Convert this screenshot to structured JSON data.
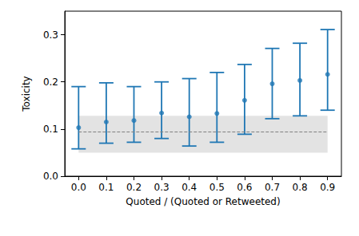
{
  "chart_data": {
    "type": "scatter",
    "x_label": "Quoted / (Quoted or Retweeted)",
    "y_label": "Toxicity",
    "categories": [
      "0.0",
      "0.1",
      "0.2",
      "0.3",
      "0.4",
      "0.5",
      "0.6",
      "0.7",
      "0.8",
      "0.9"
    ],
    "values": [
      0.103,
      0.115,
      0.118,
      0.134,
      0.126,
      0.133,
      0.161,
      0.196,
      0.203,
      0.216
    ],
    "ci_low": [
      0.058,
      0.07,
      0.072,
      0.08,
      0.064,
      0.072,
      0.089,
      0.122,
      0.128,
      0.14
    ],
    "ci_high": [
      0.19,
      0.198,
      0.19,
      0.2,
      0.207,
      0.22,
      0.237,
      0.271,
      0.282,
      0.311
    ],
    "baseline": 0.095,
    "baseline_band": [
      0.05,
      0.128
    ],
    "color": "#1f77b4",
    "marker": "circle",
    "ylim": [
      0,
      0.35
    ],
    "yticks": [
      {
        "value": 0,
        "label": "0.0"
      },
      0.1,
      0.2,
      0.3
    ],
    "grid": false
  }
}
